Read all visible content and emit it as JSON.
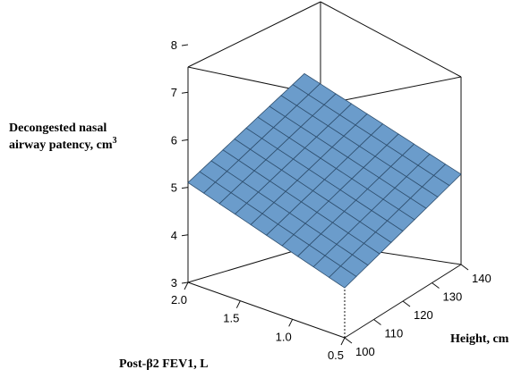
{
  "chart_data": {
    "type": "surface3d",
    "title": "",
    "zlabel": "Decongested nasal airway patency, cm",
    "zlabel_superscript": "3",
    "xlabel": "Height, cm",
    "ylabel": "Post-β2 FEV1, L",
    "x_ticks": [
      "100",
      "110",
      "120",
      "130",
      "140"
    ],
    "y_ticks": [
      "0.5",
      "1.0",
      "1.5",
      "2.0"
    ],
    "z_ticks": [
      "3",
      "4",
      "5",
      "6",
      "7",
      "8"
    ],
    "xlim": [
      100,
      140
    ],
    "ylim": [
      0.5,
      2.0
    ],
    "zlim": [
      3,
      8
    ],
    "surface_color": "#6b9ccb",
    "grid_color": "#2e4f6f",
    "grid_divisions": 10,
    "corners": [
      {
        "height": 100,
        "fev1": 0.5,
        "patency": 4.05
      },
      {
        "height": 140,
        "fev1": 0.5,
        "patency": 4.9
      },
      {
        "height": 100,
        "fev1": 2.0,
        "patency": 5.1
      },
      {
        "height": 140,
        "fev1": 2.0,
        "patency": 5.85
      }
    ]
  }
}
